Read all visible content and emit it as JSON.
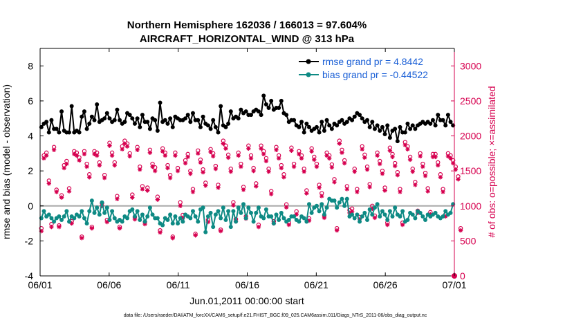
{
  "chart_data": {
    "type": "line",
    "title": "Northern Hemisphere 162036 / 166013 = 97.604%",
    "subtitle": "AIRCRAFT_HORIZONTAL_WIND @ 313 hPa",
    "xlabel": "Jun.01,2011 00:00:00 start",
    "ylabel": "rmse and bias (model - observation)",
    "y2label": "# of obs: o=possible; ×=assimilated",
    "footnote": "data file: /Users/raeder/DAI/ATM_forcXX/CAM6_setup/f.e21.FHIST_BGC.f09_025.CAM6assim.011/Diags_NTrS_2011-06/obs_diag_output.nc",
    "x_tick_labels": [
      "06/01",
      "06/06",
      "06/11",
      "06/16",
      "06/21",
      "06/26",
      "07/01"
    ],
    "x_tick_days": [
      0,
      5,
      10,
      15,
      20,
      25,
      30
    ],
    "xlim": [
      0,
      30
    ],
    "ylim": [
      -4,
      9
    ],
    "y_ticks": [
      -4,
      -2,
      0,
      2,
      4,
      6,
      8
    ],
    "y2lim": [
      0,
      3250
    ],
    "y2_ticks": [
      0,
      500,
      1000,
      1500,
      2000,
      2500,
      3000
    ],
    "grid": false,
    "zero_line": 0,
    "legend": {
      "position": "top-right",
      "entries": [
        "rmse grand pr = 4.8442",
        "bias grand pr = -0.44522"
      ]
    },
    "colors": {
      "rmse": "#000000",
      "bias": "#0e8a84",
      "obs": "#d6004f",
      "zero_line": "#a9a9a9",
      "legend_text": "#1a5fd6"
    },
    "series": [
      {
        "name": "rmse",
        "values": [
          4.5,
          4.7,
          4.8,
          4.2,
          4.9,
          4.4,
          4.4,
          4.2,
          5.4,
          4.3,
          4.2,
          4.2,
          5.7,
          4.2,
          4.3,
          4.2,
          5.1,
          5.4,
          4.4,
          4.7,
          5.1,
          4.9,
          5.8,
          4.8,
          4.9,
          5.0,
          5.3,
          5.0,
          4.8,
          4.9,
          5.5,
          4.9,
          4.7,
          4.8,
          5.3,
          5.2,
          5.0,
          4.7,
          5.0,
          4.5,
          5.2,
          4.8,
          4.8,
          4.4,
          5.0,
          4.9,
          4.3,
          5.9,
          4.8,
          4.9,
          4.7,
          5.0,
          4.5,
          5.1,
          5.0,
          4.9,
          4.9,
          5.0,
          5.2,
          4.8,
          5.3,
          4.9,
          4.9,
          4.5,
          5.1,
          4.7,
          4.6,
          4.4,
          4.9,
          4.5,
          4.2,
          5.7,
          4.6,
          4.5,
          4.7,
          5.4,
          5.0,
          5.1,
          5.0,
          5.5,
          5.3,
          5.4,
          5.2,
          5.2,
          5.4,
          5.5,
          5.4,
          5.2,
          6.3,
          5.8,
          5.6,
          6.0,
          5.5,
          5.6,
          5.6,
          6.0,
          5.3,
          5.2,
          4.8,
          4.9,
          4.9,
          4.6,
          4.5,
          4.8,
          4.2,
          4.7,
          4.5,
          4.3,
          4.4,
          4.5,
          4.2,
          4.8,
          4.3,
          4.9,
          4.6,
          4.4,
          4.7,
          4.6,
          4.8,
          4.9,
          4.7,
          4.8,
          5.0,
          4.9,
          5.1,
          5.3,
          5.2,
          5.0,
          4.8,
          4.9,
          4.5,
          4.8,
          4.4,
          4.6,
          4.3,
          4.5,
          4.1,
          4.6,
          3.9,
          4.3,
          4.4,
          3.7,
          4.5,
          4.2,
          4.2,
          4.7,
          4.4,
          4.6,
          4.4,
          4.6,
          4.7,
          4.8,
          4.7,
          4.8,
          4.7,
          4.9,
          4.6,
          5.2,
          4.9,
          4.9,
          4.6,
          5.2,
          4.8,
          4.6
        ]
      },
      {
        "name": "bias",
        "values": [
          -0.7,
          -0.3,
          -0.6,
          -0.5,
          -0.7,
          -0.9,
          -0.7,
          -0.6,
          -0.8,
          -0.6,
          -0.3,
          -0.9,
          -0.6,
          -0.7,
          -0.5,
          -0.6,
          -0.3,
          -0.7,
          -1.0,
          -0.3,
          0.3,
          -0.4,
          -0.1,
          -0.5,
          0.2,
          -0.4,
          -0.1,
          -0.8,
          -0.3,
          -0.7,
          -0.9,
          -0.8,
          -0.9,
          -0.6,
          -0.7,
          -0.3,
          -0.2,
          -0.6,
          -0.3,
          -0.8,
          -0.5,
          -0.9,
          -0.6,
          -0.1,
          -0.5,
          -0.7,
          -0.7,
          -1.0,
          -1.1,
          -0.7,
          -0.8,
          -0.5,
          -1.0,
          -0.6,
          -1.0,
          -0.7,
          -0.9,
          -0.5,
          -0.6,
          -0.7,
          -0.3,
          -0.6,
          -0.9,
          -0.2,
          -0.1,
          -1.5,
          -0.6,
          -0.4,
          -1.2,
          -0.5,
          -0.3,
          -0.7,
          -0.1,
          -0.8,
          -0.3,
          -1.2,
          -0.3,
          -0.9,
          -0.1,
          -0.4,
          0.1,
          -0.7,
          -0.1,
          -0.4,
          -0.9,
          -0.4,
          -0.1,
          -0.6,
          -0.7,
          -0.2,
          -0.6,
          -0.6,
          -1.0,
          -0.5,
          -0.8,
          -0.4,
          -0.7,
          -0.9,
          -0.8,
          -0.6,
          -0.6,
          -0.8,
          -0.9,
          -0.6,
          -0.7,
          -0.9,
          0.1,
          -0.4,
          -0.1,
          0.0,
          -0.3,
          0.1,
          -0.5,
          -0.1,
          0.4,
          0.3,
          0.3,
          -0.1,
          0.2,
          0.4,
          0.0,
          0.4,
          -0.6,
          -0.5,
          -0.7,
          -0.5,
          -0.9,
          -0.6,
          -0.4,
          -0.8,
          -0.2,
          -0.5,
          -0.1,
          0.1,
          -0.6,
          -0.3,
          -0.5,
          -0.8,
          -0.3,
          -0.6,
          -0.1,
          -0.5,
          -0.6,
          -0.3,
          -0.9,
          -0.8,
          -0.4,
          -0.5,
          -0.7,
          -0.3,
          -0.4,
          -0.6,
          -0.8,
          -0.5,
          -0.6,
          -0.5,
          -0.4,
          -0.6,
          -0.7,
          -0.6,
          -0.3,
          -0.5,
          -0.4,
          0.1
        ]
      },
      {
        "name": "obs_possible",
        "values": [
          680,
          1720,
          1760,
          1360,
          740,
          1840,
          1230,
          720,
          1150,
          1580,
          1640,
          1250,
          780,
          1780,
          1760,
          1690,
          560,
          1780,
          1600,
          1450,
          700,
          1780,
          1760,
          1620,
          1040,
          1440,
          800,
          1900,
          1760,
          1620,
          1140,
          700,
          1850,
          1930,
          1890,
          1750,
          1160,
          840,
          1840,
          1560,
          1280,
          770,
          1260,
          1800,
          1600,
          1550,
          1130,
          650,
          1820,
          1760,
          1580,
          1440,
          560,
          1760,
          1540,
          1050,
          870,
          1650,
          1740,
          1500,
          1240,
          600,
          1790,
          1660,
          1520,
          1330,
          800,
          1810,
          1750,
          1570,
          1300,
          660,
          1930,
          1860,
          1730,
          1530,
          1050,
          810,
          1760,
          1600,
          1270,
          850,
          1860,
          1720,
          1540,
          1320,
          730,
          1860,
          1780,
          1680,
          1530,
          1210,
          780,
          1840,
          1720,
          1580,
          1450,
          1020,
          760,
          1830,
          1600,
          920,
          1780,
          1720,
          1530,
          1220,
          820,
          1820,
          1700,
          1600,
          1300,
          1180,
          860,
          1760,
          1720,
          1590,
          1380,
          680,
          1930,
          1800,
          1650,
          1280,
          940,
          960,
          1530,
          1240,
          840,
          1850,
          1730,
          1560,
          1310,
          1000,
          860,
          1760,
          1640,
          1500,
          1260,
          760,
          1830,
          1740,
          1610,
          1480,
          1240,
          760,
          1910,
          1850,
          1700,
          1530,
          1340,
          930,
          1750,
          1600,
          1470,
          1250,
          910,
          1740,
          1740,
          1620,
          1450,
          1240,
          880,
          1750,
          1720,
          1650,
          1560,
          1420,
          680
        ]
      },
      {
        "name": "obs_assimilated",
        "values": [
          640,
          1680,
          1720,
          1320,
          700,
          1800,
          1200,
          700,
          1120,
          1540,
          1600,
          1210,
          750,
          1740,
          1720,
          1650,
          540,
          1740,
          1560,
          1410,
          680,
          1740,
          1720,
          1580,
          1000,
          1400,
          770,
          1860,
          1720,
          1580,
          1100,
          680,
          1810,
          1890,
          1850,
          1710,
          1120,
          810,
          1800,
          1520,
          1240,
          740,
          1220,
          1760,
          1560,
          1500,
          1090,
          620,
          1780,
          1720,
          1540,
          1400,
          540,
          1720,
          1500,
          1000,
          830,
          1610,
          1700,
          1460,
          1200,
          580,
          1750,
          1620,
          1480,
          1290,
          770,
          1770,
          1710,
          1530,
          1260,
          640,
          1890,
          1820,
          1690,
          1490,
          1010,
          780,
          1720,
          1560,
          1230,
          820,
          1820,
          1680,
          1500,
          1280,
          700,
          1820,
          1740,
          1640,
          1490,
          1170,
          750,
          1800,
          1680,
          1540,
          1410,
          980,
          730,
          1790,
          1560,
          880,
          1740,
          1680,
          1490,
          1180,
          790,
          1780,
          1660,
          1560,
          1260,
          1140,
          830,
          1720,
          1680,
          1550,
          1340,
          650,
          1890,
          1760,
          1610,
          1240,
          900,
          920,
          1490,
          1200,
          810,
          1810,
          1690,
          1520,
          1270,
          960,
          830,
          1720,
          1600,
          1460,
          1220,
          730,
          1790,
          1700,
          1570,
          1440,
          1200,
          730,
          1870,
          1810,
          1660,
          1490,
          1300,
          900,
          1710,
          1560,
          1430,
          1210,
          880,
          1700,
          1700,
          1580,
          1410,
          1200,
          850,
          1710,
          1680,
          1610,
          1520,
          1380,
          650
        ]
      }
    ],
    "final_point": {
      "day": 30,
      "obs": 0
    }
  }
}
